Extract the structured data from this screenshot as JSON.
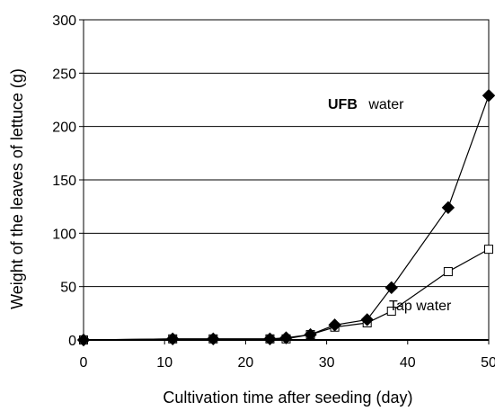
{
  "chart_data": {
    "type": "line",
    "title": "",
    "xlabel": "Cultivation time after seeding (day)",
    "ylabel": "Weight of the leaves of lettuce (g)",
    "xlim": [
      0,
      50
    ],
    "ylim": [
      0,
      300
    ],
    "xticks": [
      0,
      10,
      20,
      30,
      40,
      50
    ],
    "yticks": [
      0,
      50,
      100,
      150,
      200,
      250,
      300
    ],
    "grid": "horizontal",
    "series": [
      {
        "name": "UFB water",
        "label_bold": "UFB",
        "label_rest": "water",
        "marker": "filled-diamond",
        "color": "#000000",
        "points": [
          [
            0,
            0
          ],
          [
            11,
            1
          ],
          [
            16,
            1
          ],
          [
            23,
            1
          ],
          [
            25,
            2
          ],
          [
            28,
            5
          ],
          [
            31,
            14
          ],
          [
            35,
            19
          ],
          [
            38,
            49
          ],
          [
            45,
            124
          ],
          [
            50,
            229
          ]
        ]
      },
      {
        "name": "Tap water",
        "marker": "open-square",
        "color": "#000000",
        "points": [
          [
            0,
            0
          ],
          [
            11,
            1
          ],
          [
            16,
            1
          ],
          [
            23,
            1
          ],
          [
            25,
            1
          ],
          [
            28,
            5
          ],
          [
            31,
            12
          ],
          [
            35,
            16
          ],
          [
            38,
            27
          ],
          [
            45,
            64
          ],
          [
            50,
            85
          ]
        ]
      }
    ]
  }
}
